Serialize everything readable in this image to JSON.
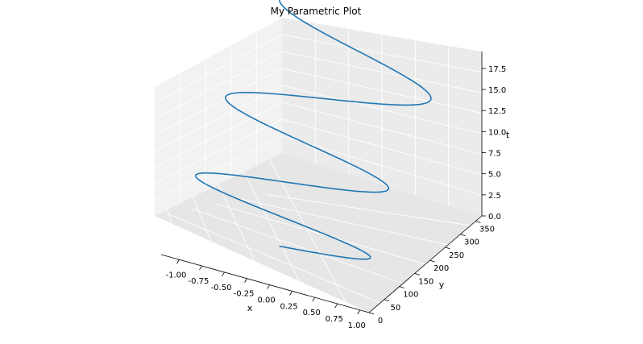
{
  "chart_data": {
    "type": "line",
    "projection": "3d",
    "title": "My Parametric Plot",
    "xlabel": "x",
    "ylabel": "y",
    "zlabel": "t",
    "xlim": [
      -1.2,
      1.1
    ],
    "ylim": [
      0,
      370
    ],
    "zlim": [
      0,
      19.5
    ],
    "xticks": [
      "-1.00",
      "-0.75",
      "-0.50",
      "-0.25",
      "0.00",
      "0.25",
      "0.50",
      "0.75",
      "1.00"
    ],
    "yticks": [
      "0",
      "50",
      "100",
      "150",
      "200",
      "250",
      "300",
      "350"
    ],
    "zticks": [
      "0.0",
      "2.5",
      "5.0",
      "7.5",
      "10.0",
      "12.5",
      "15.0",
      "17.5"
    ],
    "grid": true,
    "line_color": "#1f77b4",
    "series": [
      {
        "function": {
          "x": "sin(t)",
          "y": "t^2",
          "z": "t"
        },
        "t_range": [
          0,
          19
        ]
      }
    ]
  }
}
